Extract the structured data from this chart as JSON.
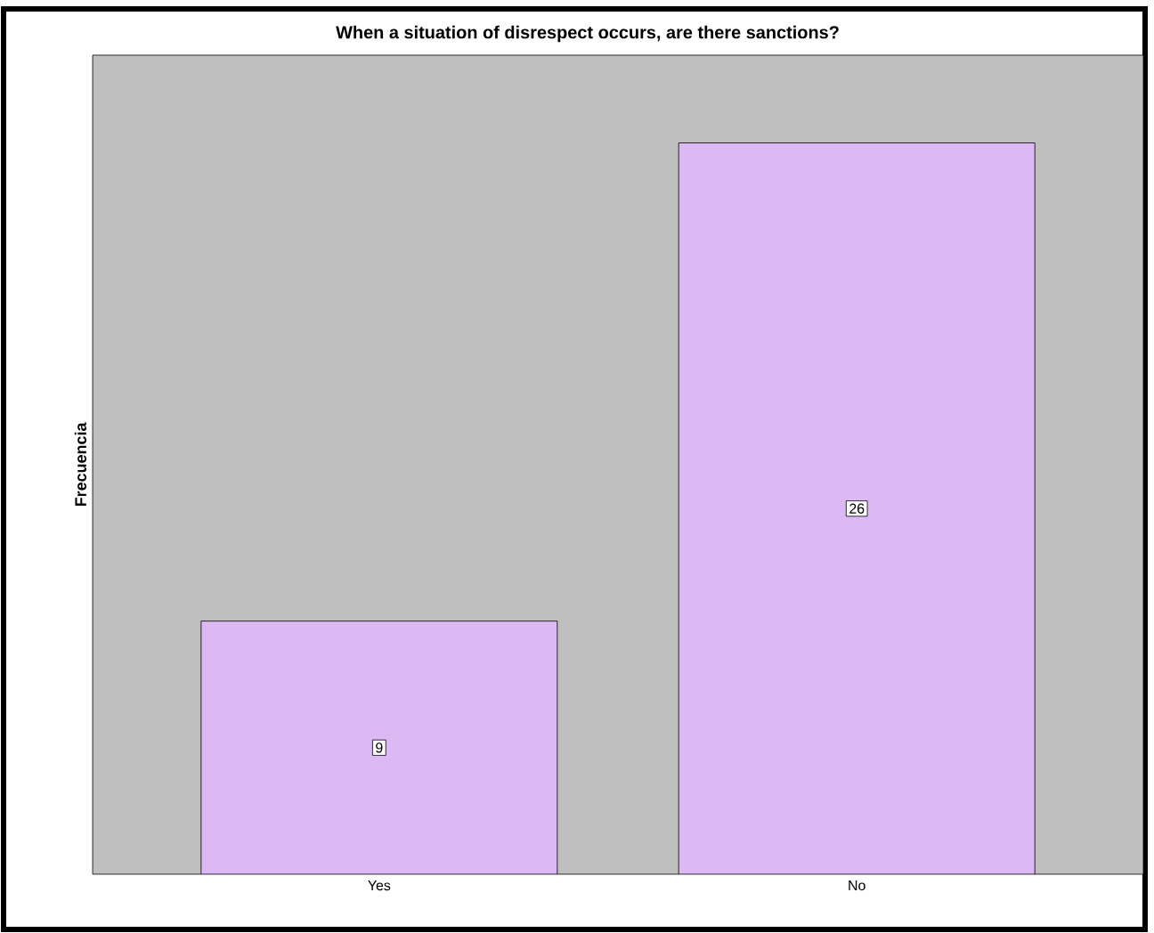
{
  "chart_data": {
    "type": "bar",
    "title": "When a situation of disrespect occurs, are there sanctions?",
    "ylabel": "Frecuencia",
    "categories": [
      "Yes",
      "No"
    ],
    "values": [
      9,
      26
    ],
    "color": "#dcb8f4",
    "data_labels": true,
    "tick_labels": "x"
  }
}
